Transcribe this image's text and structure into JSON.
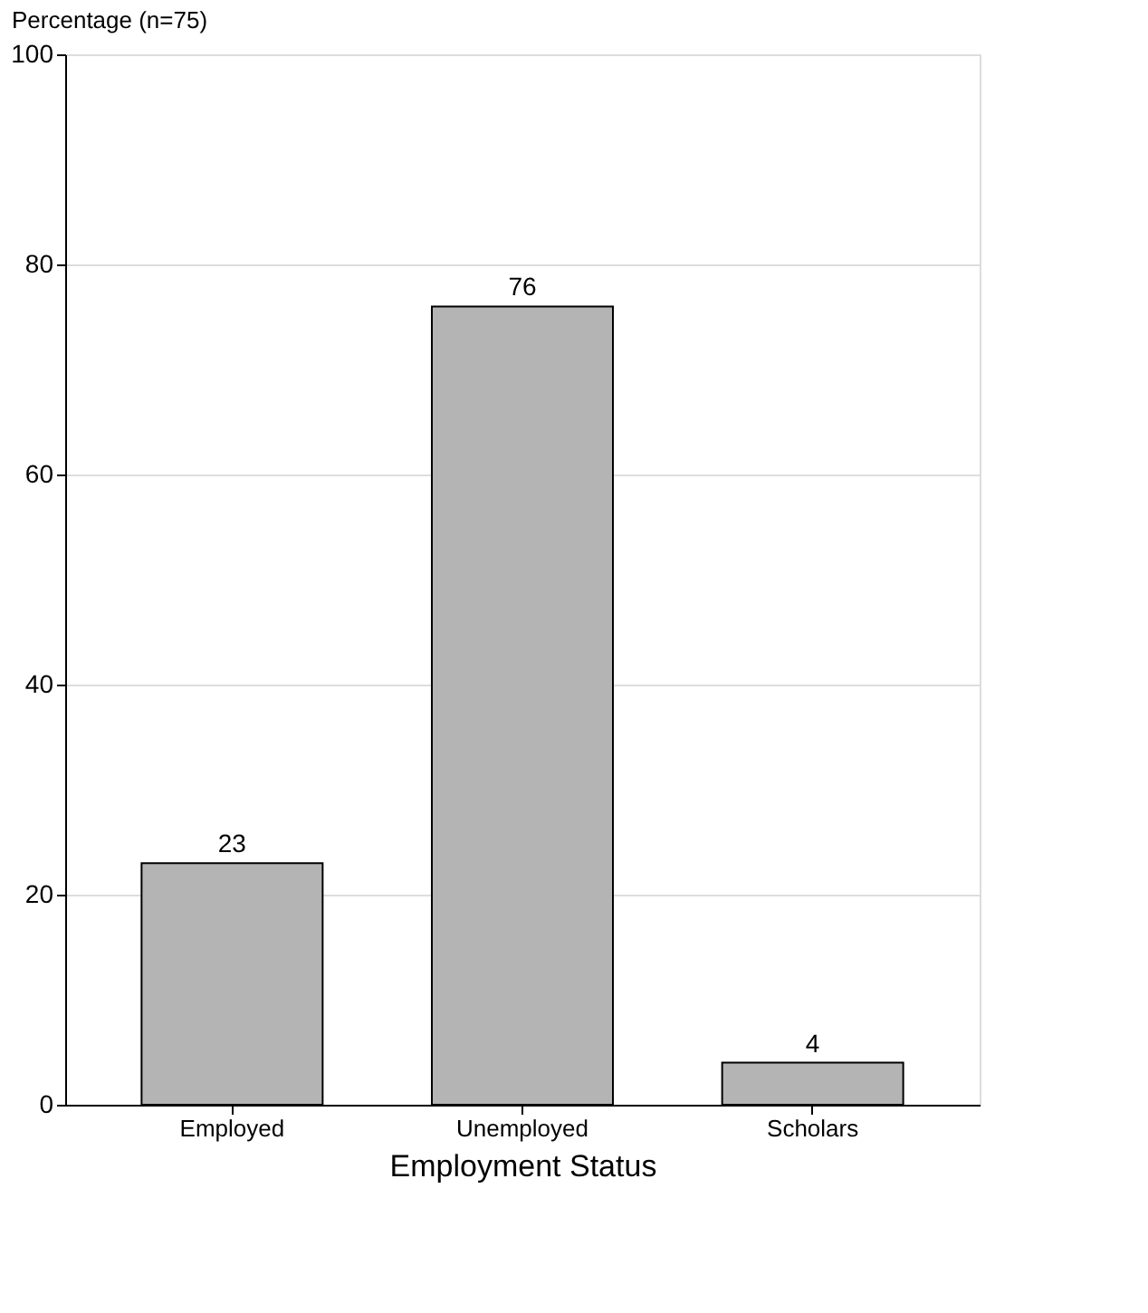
{
  "chart_data": {
    "type": "bar",
    "xlabel": "Employment Status",
    "ylabel": "Percentage (n=75)",
    "categories": [
      "Employed",
      "Unemployed",
      "Scholars"
    ],
    "values": [
      23,
      76,
      4
    ],
    "color": "#b4b4b4",
    "ylim": [
      0,
      100
    ],
    "yticks": [
      0,
      20,
      40,
      60,
      80,
      100
    ],
    "grid": "y",
    "data_labels": true
  }
}
